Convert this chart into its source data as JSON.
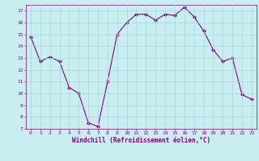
{
  "x": [
    0,
    1,
    2,
    3,
    4,
    5,
    6,
    7,
    8,
    9,
    10,
    11,
    12,
    13,
    14,
    15,
    16,
    17,
    18,
    19,
    20,
    21,
    22,
    23
  ],
  "y": [
    14.8,
    12.7,
    13.1,
    12.7,
    10.5,
    10.0,
    7.5,
    7.2,
    11.0,
    15.0,
    16.0,
    16.7,
    16.7,
    16.2,
    16.7,
    16.6,
    17.3,
    16.5,
    15.3,
    13.7,
    12.7,
    13.0,
    9.9,
    9.5
  ],
  "line_color": "#800080",
  "marker": "D",
  "marker_size": 2,
  "bg_color": "#c8eef0",
  "grid_color": "#a8d8dc",
  "xlabel": "Windchill (Refroidissement éolien,°C)",
  "xlabel_color": "#800080",
  "tick_color": "#800080",
  "ylim": [
    7,
    17.5
  ],
  "xlim": [
    -0.5,
    23.5
  ],
  "yticks": [
    7,
    8,
    9,
    10,
    11,
    12,
    13,
    14,
    15,
    16,
    17
  ],
  "xticks": [
    0,
    1,
    2,
    3,
    4,
    5,
    6,
    7,
    8,
    9,
    10,
    11,
    12,
    13,
    14,
    15,
    16,
    17,
    18,
    19,
    20,
    21,
    22,
    23
  ]
}
